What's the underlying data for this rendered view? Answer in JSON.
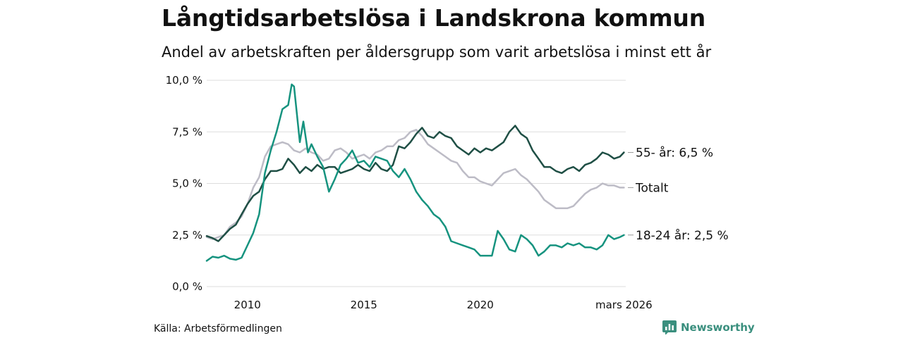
{
  "title": "Långtidsarbetslösa i Landskrona kommun",
  "subtitle": "Andel av arbetskraften per åldersgrupp som varit arbetslösa i minst ett år",
  "source": "Källa: Arbetsförmedlingen",
  "brand": "Newsworthy",
  "colors": {
    "older": "#1f4f45",
    "total": "#bdbcc6",
    "young": "#16937f",
    "grid": "#dddddd",
    "brand": "#3a8f7e"
  },
  "chart_data": {
    "type": "line",
    "x_range": [
      2008.25,
      2026.25
    ],
    "ylim": [
      0,
      10
    ],
    "y_ticks": [
      0,
      2.5,
      5,
      7.5,
      10
    ],
    "y_tick_labels": [
      "0,0 %",
      "2,5 %",
      "5,0 %",
      "7,5 %",
      "10,0 %"
    ],
    "x_ticks": [
      2010,
      2015,
      2020,
      2026.17
    ],
    "x_tick_labels": [
      "2010",
      "2015",
      "2020",
      "mars 2026"
    ],
    "series": [
      {
        "name": "55- år",
        "end_label": "55- år: 6,5 %",
        "color_key": "older",
        "points": [
          [
            2008.25,
            2.45
          ],
          [
            2008.5,
            2.35
          ],
          [
            2008.75,
            2.2
          ],
          [
            2009.0,
            2.5
          ],
          [
            2009.25,
            2.8
          ],
          [
            2009.5,
            3.0
          ],
          [
            2009.75,
            3.5
          ],
          [
            2010.0,
            4.0
          ],
          [
            2010.25,
            4.4
          ],
          [
            2010.5,
            4.6
          ],
          [
            2010.75,
            5.2
          ],
          [
            2011.0,
            5.6
          ],
          [
            2011.25,
            5.6
          ],
          [
            2011.5,
            5.7
          ],
          [
            2011.75,
            6.2
          ],
          [
            2012.0,
            5.9
          ],
          [
            2012.25,
            5.5
          ],
          [
            2012.5,
            5.8
          ],
          [
            2012.75,
            5.6
          ],
          [
            2013.0,
            5.9
          ],
          [
            2013.25,
            5.7
          ],
          [
            2013.5,
            5.8
          ],
          [
            2013.75,
            5.8
          ],
          [
            2014.0,
            5.5
          ],
          [
            2014.25,
            5.6
          ],
          [
            2014.5,
            5.7
          ],
          [
            2014.75,
            5.9
          ],
          [
            2015.0,
            5.7
          ],
          [
            2015.25,
            5.6
          ],
          [
            2015.5,
            6.0
          ],
          [
            2015.75,
            5.7
          ],
          [
            2016.0,
            5.6
          ],
          [
            2016.25,
            5.9
          ],
          [
            2016.5,
            6.8
          ],
          [
            2016.75,
            6.7
          ],
          [
            2017.0,
            7.0
          ],
          [
            2017.25,
            7.4
          ],
          [
            2017.5,
            7.7
          ],
          [
            2017.75,
            7.3
          ],
          [
            2018.0,
            7.2
          ],
          [
            2018.25,
            7.5
          ],
          [
            2018.5,
            7.3
          ],
          [
            2018.75,
            7.2
          ],
          [
            2019.0,
            6.8
          ],
          [
            2019.25,
            6.6
          ],
          [
            2019.5,
            6.4
          ],
          [
            2019.75,
            6.7
          ],
          [
            2020.0,
            6.5
          ],
          [
            2020.25,
            6.7
          ],
          [
            2020.5,
            6.6
          ],
          [
            2020.75,
            6.8
          ],
          [
            2021.0,
            7.0
          ],
          [
            2021.25,
            7.5
          ],
          [
            2021.5,
            7.8
          ],
          [
            2021.75,
            7.4
          ],
          [
            2022.0,
            7.2
          ],
          [
            2022.25,
            6.6
          ],
          [
            2022.5,
            6.2
          ],
          [
            2022.75,
            5.8
          ],
          [
            2023.0,
            5.8
          ],
          [
            2023.25,
            5.6
          ],
          [
            2023.5,
            5.5
          ],
          [
            2023.75,
            5.7
          ],
          [
            2024.0,
            5.8
          ],
          [
            2024.25,
            5.6
          ],
          [
            2024.5,
            5.9
          ],
          [
            2024.75,
            6.0
          ],
          [
            2025.0,
            6.2
          ],
          [
            2025.25,
            6.5
          ],
          [
            2025.5,
            6.4
          ],
          [
            2025.75,
            6.2
          ],
          [
            2026.0,
            6.3
          ],
          [
            2026.17,
            6.5
          ]
        ]
      },
      {
        "name": "Totalt",
        "end_label": "Totalt",
        "color_key": "total",
        "points": [
          [
            2008.25,
            2.4
          ],
          [
            2008.5,
            2.3
          ],
          [
            2008.75,
            2.4
          ],
          [
            2009.0,
            2.5
          ],
          [
            2009.25,
            2.9
          ],
          [
            2009.5,
            3.1
          ],
          [
            2009.75,
            3.4
          ],
          [
            2010.0,
            4.0
          ],
          [
            2010.25,
            4.8
          ],
          [
            2010.5,
            5.3
          ],
          [
            2010.75,
            6.3
          ],
          [
            2011.0,
            6.8
          ],
          [
            2011.25,
            6.9
          ],
          [
            2011.5,
            7.0
          ],
          [
            2011.75,
            6.9
          ],
          [
            2012.0,
            6.6
          ],
          [
            2012.25,
            6.5
          ],
          [
            2012.5,
            6.7
          ],
          [
            2012.75,
            6.5
          ],
          [
            2013.0,
            6.4
          ],
          [
            2013.25,
            6.1
          ],
          [
            2013.5,
            6.2
          ],
          [
            2013.75,
            6.6
          ],
          [
            2014.0,
            6.7
          ],
          [
            2014.25,
            6.5
          ],
          [
            2014.5,
            6.2
          ],
          [
            2014.75,
            6.3
          ],
          [
            2015.0,
            6.4
          ],
          [
            2015.25,
            6.2
          ],
          [
            2015.5,
            6.5
          ],
          [
            2015.75,
            6.6
          ],
          [
            2016.0,
            6.8
          ],
          [
            2016.25,
            6.8
          ],
          [
            2016.5,
            7.1
          ],
          [
            2016.75,
            7.2
          ],
          [
            2017.0,
            7.5
          ],
          [
            2017.25,
            7.6
          ],
          [
            2017.5,
            7.3
          ],
          [
            2017.75,
            6.9
          ],
          [
            2018.0,
            6.7
          ],
          [
            2018.25,
            6.5
          ],
          [
            2018.5,
            6.3
          ],
          [
            2018.75,
            6.1
          ],
          [
            2019.0,
            6.0
          ],
          [
            2019.25,
            5.6
          ],
          [
            2019.5,
            5.3
          ],
          [
            2019.75,
            5.3
          ],
          [
            2020.0,
            5.1
          ],
          [
            2020.25,
            5.0
          ],
          [
            2020.5,
            4.9
          ],
          [
            2020.75,
            5.2
          ],
          [
            2021.0,
            5.5
          ],
          [
            2021.25,
            5.6
          ],
          [
            2021.5,
            5.7
          ],
          [
            2021.75,
            5.4
          ],
          [
            2022.0,
            5.2
          ],
          [
            2022.25,
            4.9
          ],
          [
            2022.5,
            4.6
          ],
          [
            2022.75,
            4.2
          ],
          [
            2023.0,
            4.0
          ],
          [
            2023.25,
            3.8
          ],
          [
            2023.5,
            3.8
          ],
          [
            2023.75,
            3.8
          ],
          [
            2024.0,
            3.9
          ],
          [
            2024.25,
            4.2
          ],
          [
            2024.5,
            4.5
          ],
          [
            2024.75,
            4.7
          ],
          [
            2025.0,
            4.8
          ],
          [
            2025.25,
            5.0
          ],
          [
            2025.5,
            4.9
          ],
          [
            2025.75,
            4.9
          ],
          [
            2026.0,
            4.8
          ],
          [
            2026.17,
            4.8
          ]
        ]
      },
      {
        "name": "18-24 år",
        "end_label": "18-24 år: 2,5 %",
        "color_key": "young",
        "points": [
          [
            2008.25,
            1.25
          ],
          [
            2008.5,
            1.45
          ],
          [
            2008.75,
            1.4
          ],
          [
            2009.0,
            1.5
          ],
          [
            2009.25,
            1.35
          ],
          [
            2009.5,
            1.3
          ],
          [
            2009.75,
            1.4
          ],
          [
            2010.0,
            2.0
          ],
          [
            2010.25,
            2.6
          ],
          [
            2010.5,
            3.5
          ],
          [
            2010.75,
            5.5
          ],
          [
            2011.0,
            6.6
          ],
          [
            2011.25,
            7.5
          ],
          [
            2011.5,
            8.6
          ],
          [
            2011.75,
            8.8
          ],
          [
            2011.9,
            9.8
          ],
          [
            2012.0,
            9.7
          ],
          [
            2012.25,
            7.0
          ],
          [
            2012.4,
            8.0
          ],
          [
            2012.6,
            6.5
          ],
          [
            2012.75,
            6.9
          ],
          [
            2013.0,
            6.3
          ],
          [
            2013.25,
            5.8
          ],
          [
            2013.5,
            4.6
          ],
          [
            2013.75,
            5.2
          ],
          [
            2014.0,
            5.9
          ],
          [
            2014.25,
            6.2
          ],
          [
            2014.5,
            6.6
          ],
          [
            2014.75,
            6.0
          ],
          [
            2015.0,
            6.1
          ],
          [
            2015.25,
            5.8
          ],
          [
            2015.5,
            6.3
          ],
          [
            2015.75,
            6.2
          ],
          [
            2016.0,
            6.1
          ],
          [
            2016.25,
            5.6
          ],
          [
            2016.5,
            5.3
          ],
          [
            2016.75,
            5.7
          ],
          [
            2017.0,
            5.2
          ],
          [
            2017.25,
            4.6
          ],
          [
            2017.5,
            4.2
          ],
          [
            2017.75,
            3.9
          ],
          [
            2018.0,
            3.5
          ],
          [
            2018.25,
            3.3
          ],
          [
            2018.5,
            2.9
          ],
          [
            2018.75,
            2.2
          ],
          [
            2019.0,
            2.1
          ],
          [
            2019.25,
            2.0
          ],
          [
            2019.5,
            1.9
          ],
          [
            2019.75,
            1.8
          ],
          [
            2020.0,
            1.5
          ],
          [
            2020.25,
            1.5
          ],
          [
            2020.5,
            1.5
          ],
          [
            2020.75,
            2.7
          ],
          [
            2021.0,
            2.3
          ],
          [
            2021.25,
            1.8
          ],
          [
            2021.5,
            1.7
          ],
          [
            2021.75,
            2.5
          ],
          [
            2022.0,
            2.3
          ],
          [
            2022.25,
            2.0
          ],
          [
            2022.5,
            1.5
          ],
          [
            2022.75,
            1.7
          ],
          [
            2023.0,
            2.0
          ],
          [
            2023.25,
            2.0
          ],
          [
            2023.5,
            1.9
          ],
          [
            2023.75,
            2.1
          ],
          [
            2024.0,
            2.0
          ],
          [
            2024.25,
            2.1
          ],
          [
            2024.5,
            1.9
          ],
          [
            2024.75,
            1.9
          ],
          [
            2025.0,
            1.8
          ],
          [
            2025.25,
            2.0
          ],
          [
            2025.5,
            2.5
          ],
          [
            2025.75,
            2.3
          ],
          [
            2026.0,
            2.4
          ],
          [
            2026.17,
            2.5
          ]
        ]
      }
    ]
  }
}
